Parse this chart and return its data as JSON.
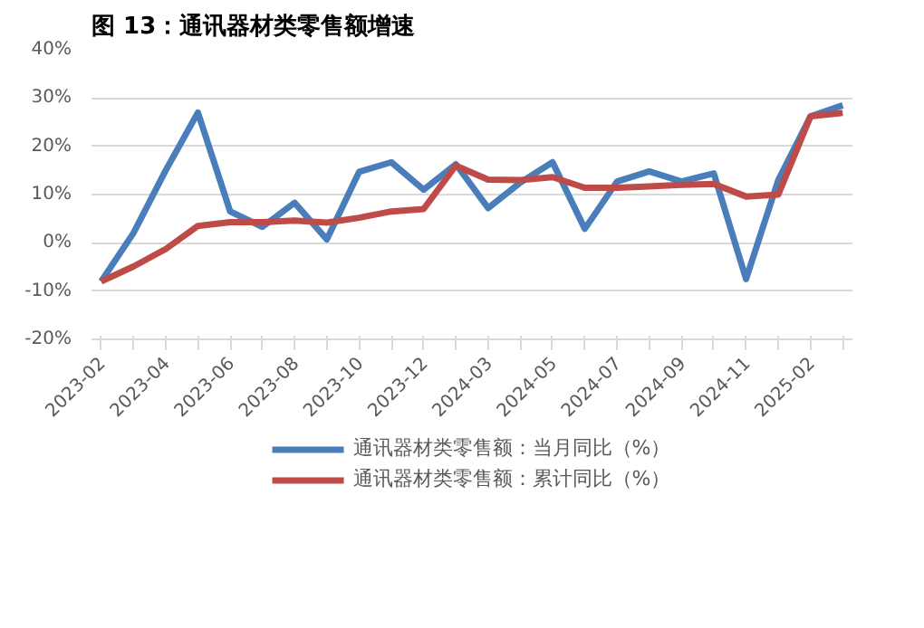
{
  "chart_data": {
    "type": "line",
    "title": "图 13：通讯器材类零售额增速",
    "categories": [
      "2023-02",
      null,
      "2023-04",
      null,
      "2023-06",
      null,
      "2023-08",
      null,
      "2023-10",
      null,
      "2023-12",
      null,
      "2024-03",
      null,
      "2024-05",
      null,
      "2024-07",
      null,
      "2024-09",
      null,
      "2024-11",
      null,
      "2025-02",
      null
    ],
    "series": [
      {
        "name": "通讯器材类零售额：当月同比（%）",
        "color": "#4a7ebb",
        "values": [
          -8,
          2,
          15,
          27,
          6.5,
          3.3,
          8.3,
          0.7,
          14.7,
          16.7,
          11,
          16.3,
          7.2,
          12.5,
          16.7,
          2.9,
          12.7,
          14.8,
          12.7,
          14.4,
          -7.5,
          13,
          26.2,
          28.5
        ]
      },
      {
        "name": "通讯器材类零售额：累计同比（%）",
        "color": "#be4b48",
        "values": [
          -8,
          -4.9,
          -1.3,
          3.5,
          4.3,
          4.3,
          4.6,
          4.2,
          5.2,
          6.5,
          7,
          16,
          13.1,
          13,
          13.6,
          11.4,
          11.4,
          11.7,
          12,
          12.2,
          9.6,
          10,
          26.2,
          26.9
        ]
      }
    ],
    "ylim": [
      -20,
      40
    ],
    "yticks": [
      {
        "value": -20,
        "label": "-20%"
      },
      {
        "value": -10,
        "label": "-10%"
      },
      {
        "value": 0,
        "label": "0%"
      },
      {
        "value": 10,
        "label": "10%"
      },
      {
        "value": 20,
        "label": "20%"
      },
      {
        "value": 30,
        "label": "30%"
      },
      {
        "value": 40,
        "label": "40%"
      }
    ],
    "grid": "y",
    "legend": "bottom",
    "line_style": "solid",
    "marker": "none"
  }
}
